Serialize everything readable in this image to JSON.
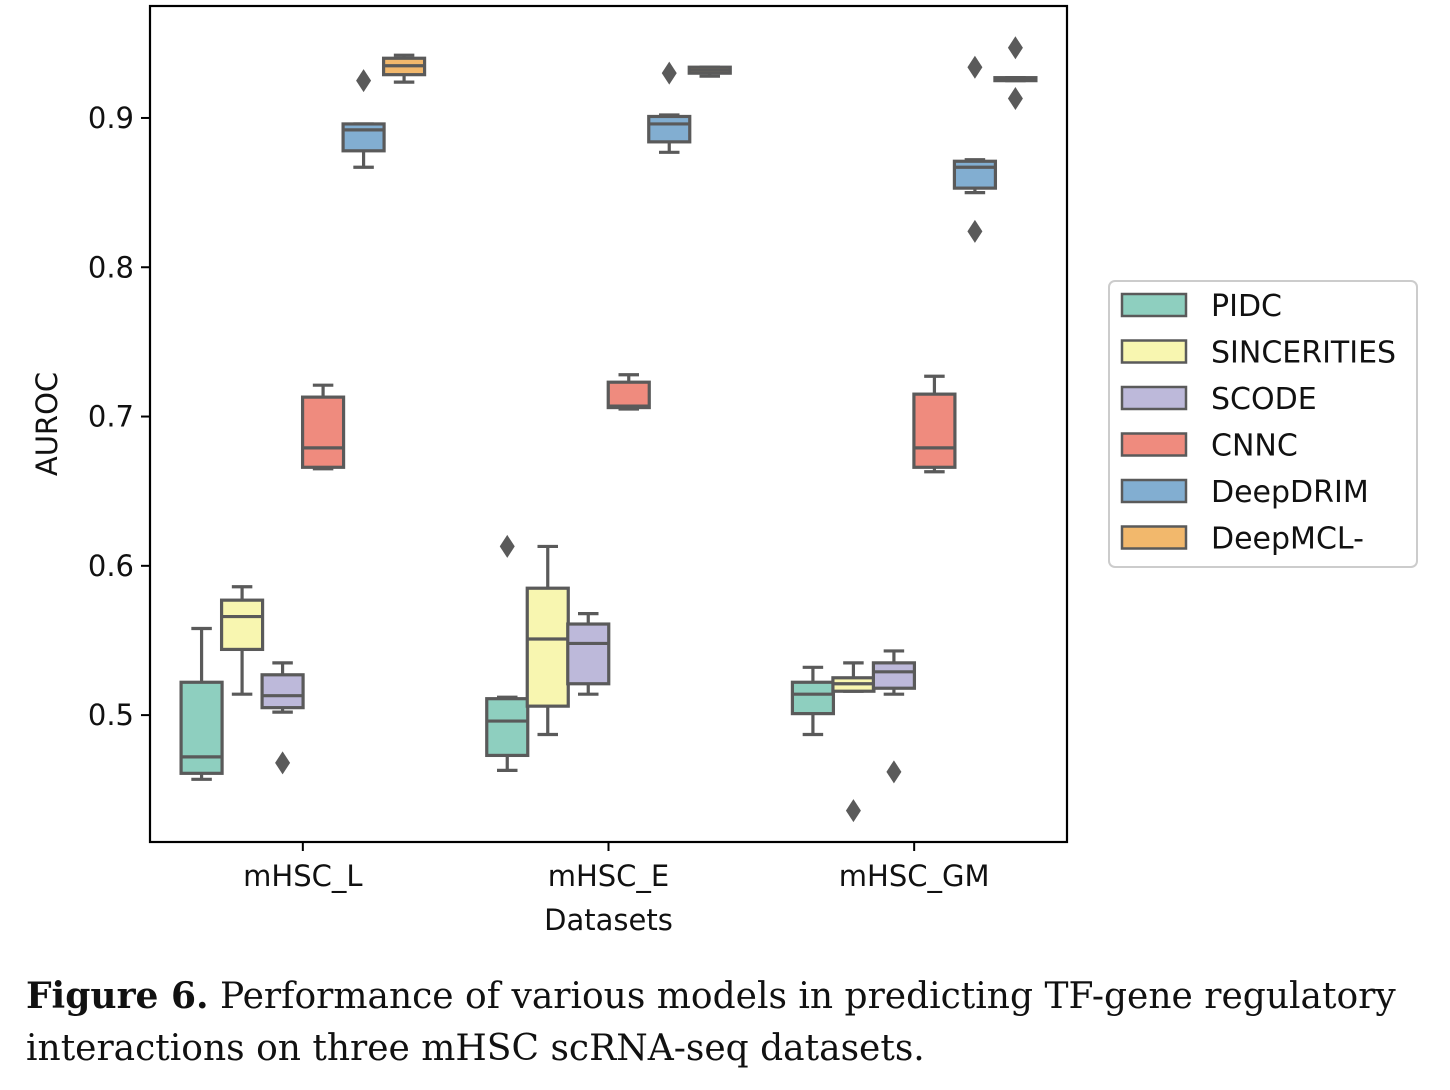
{
  "chart_data": {
    "type": "box",
    "xlabel": "Datasets",
    "ylabel": "AUROC",
    "ylim": [
      0.415,
      0.975
    ],
    "yticks": [
      "0.5",
      "0.6",
      "0.7",
      "0.8",
      "0.9"
    ],
    "categories": [
      "mHSC_L",
      "mHSC_E",
      "mHSC_GM"
    ],
    "legend_position": "outside-right",
    "series": [
      {
        "name": "PIDC",
        "color": "#8ecfbf",
        "boxes": [
          {
            "whislo": 0.457,
            "q1": 0.461,
            "med": 0.472,
            "q3": 0.522,
            "whishi": 0.558,
            "fliers": []
          },
          {
            "whislo": 0.463,
            "q1": 0.473,
            "med": 0.496,
            "q3": 0.511,
            "whishi": 0.512,
            "fliers": [
              0.613
            ]
          },
          {
            "whislo": 0.487,
            "q1": 0.501,
            "med": 0.514,
            "q3": 0.522,
            "whishi": 0.532,
            "fliers": []
          }
        ]
      },
      {
        "name": "SINCERITIES",
        "color": "#f8f6b0",
        "boxes": [
          {
            "whislo": 0.514,
            "q1": 0.544,
            "med": 0.566,
            "q3": 0.577,
            "whishi": 0.586,
            "fliers": []
          },
          {
            "whislo": 0.487,
            "q1": 0.506,
            "med": 0.551,
            "q3": 0.585,
            "whishi": 0.613,
            "fliers": []
          },
          {
            "whislo": 0.516,
            "q1": 0.516,
            "med": 0.521,
            "q3": 0.525,
            "whishi": 0.535,
            "fliers": [
              0.436
            ]
          }
        ]
      },
      {
        "name": "SCODE",
        "color": "#bdb9da",
        "boxes": [
          {
            "whislo": 0.502,
            "q1": 0.505,
            "med": 0.513,
            "q3": 0.527,
            "whishi": 0.535,
            "fliers": [
              0.468
            ]
          },
          {
            "whislo": 0.514,
            "q1": 0.521,
            "med": 0.548,
            "q3": 0.561,
            "whishi": 0.568,
            "fliers": []
          },
          {
            "whislo": 0.514,
            "q1": 0.518,
            "med": 0.529,
            "q3": 0.535,
            "whishi": 0.543,
            "fliers": [
              0.462
            ]
          }
        ]
      },
      {
        "name": "CNNC",
        "color": "#ef8b7e",
        "boxes": [
          {
            "whislo": 0.665,
            "q1": 0.666,
            "med": 0.679,
            "q3": 0.713,
            "whishi": 0.721,
            "fliers": []
          },
          {
            "whislo": 0.705,
            "q1": 0.706,
            "med": 0.707,
            "q3": 0.723,
            "whishi": 0.728,
            "fliers": []
          },
          {
            "whislo": 0.663,
            "q1": 0.666,
            "med": 0.679,
            "q3": 0.715,
            "whishi": 0.727,
            "fliers": []
          }
        ]
      },
      {
        "name": "DeepDRIM",
        "color": "#82aed1",
        "boxes": [
          {
            "whislo": 0.867,
            "q1": 0.878,
            "med": 0.892,
            "q3": 0.896,
            "whishi": 0.896,
            "fliers": [
              0.925
            ]
          },
          {
            "whislo": 0.877,
            "q1": 0.884,
            "med": 0.896,
            "q3": 0.901,
            "whishi": 0.902,
            "fliers": [
              0.93
            ]
          },
          {
            "whislo": 0.85,
            "q1": 0.853,
            "med": 0.867,
            "q3": 0.871,
            "whishi": 0.872,
            "fliers": [
              0.934,
              0.824
            ]
          }
        ]
      },
      {
        "name": "DeepMCL-",
        "color": "#f2b86c",
        "boxes": [
          {
            "whislo": 0.924,
            "q1": 0.929,
            "med": 0.935,
            "q3": 0.94,
            "whishi": 0.942,
            "fliers": []
          },
          {
            "whislo": 0.928,
            "q1": 0.93,
            "med": 0.932,
            "q3": 0.934,
            "whishi": 0.934,
            "fliers": []
          },
          {
            "whislo": 0.925,
            "q1": 0.925,
            "med": 0.926,
            "q3": 0.927,
            "whishi": 0.927,
            "fliers": [
              0.947,
              0.913
            ]
          }
        ]
      }
    ]
  },
  "caption": {
    "label": "Figure 6.",
    "text": " Performance of various models in predicting TF-gene regulatory interactions on three mHSC scRNA-seq datasets."
  }
}
